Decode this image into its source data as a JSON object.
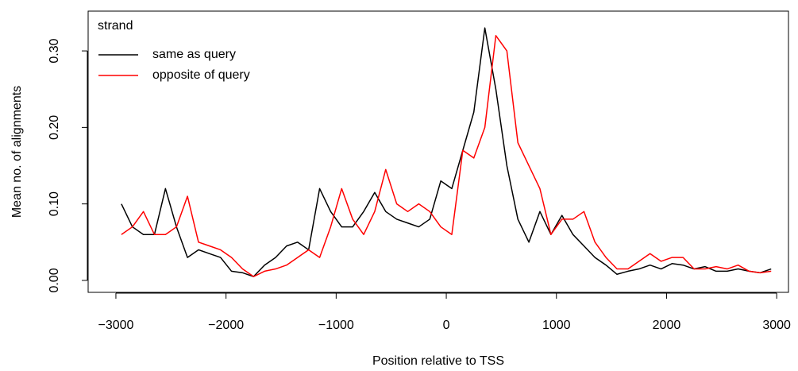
{
  "chart_data": {
    "type": "line",
    "x_label": "Position relative to TSS",
    "y_label": "Mean no. of alignments",
    "legend_title": "strand",
    "legend_position": "top-left",
    "x": [
      -2950,
      -2850,
      -2750,
      -2650,
      -2550,
      -2450,
      -2350,
      -2250,
      -2150,
      -2050,
      -1950,
      -1850,
      -1750,
      -1650,
      -1550,
      -1450,
      -1350,
      -1250,
      -1150,
      -1050,
      -950,
      -850,
      -750,
      -650,
      -550,
      -450,
      -350,
      -250,
      -150,
      -50,
      50,
      150,
      250,
      350,
      450,
      550,
      650,
      750,
      850,
      950,
      1050,
      1150,
      1250,
      1350,
      1450,
      1550,
      1650,
      1750,
      1850,
      1950,
      2050,
      2150,
      2250,
      2350,
      2450,
      2550,
      2650,
      2750,
      2850,
      2950
    ],
    "series": [
      {
        "name": "same as query",
        "color": "#000000",
        "values": [
          0.1,
          0.07,
          0.06,
          0.06,
          0.12,
          0.07,
          0.03,
          0.04,
          0.035,
          0.03,
          0.012,
          0.01,
          0.005,
          0.02,
          0.03,
          0.045,
          0.05,
          0.04,
          0.12,
          0.09,
          0.07,
          0.07,
          0.09,
          0.115,
          0.09,
          0.08,
          0.075,
          0.07,
          0.08,
          0.13,
          0.12,
          0.17,
          0.22,
          0.33,
          0.25,
          0.15,
          0.08,
          0.05,
          0.09,
          0.06,
          0.085,
          0.06,
          0.045,
          0.03,
          0.02,
          0.008,
          0.012,
          0.015,
          0.02,
          0.015,
          0.022,
          0.02,
          0.015,
          0.018,
          0.012,
          0.012,
          0.015,
          0.012,
          0.01,
          0.015
        ]
      },
      {
        "name": "opposite of query",
        "color": "#ff0000",
        "values": [
          0.06,
          0.07,
          0.09,
          0.06,
          0.06,
          0.07,
          0.11,
          0.05,
          0.045,
          0.04,
          0.03,
          0.015,
          0.005,
          0.012,
          0.015,
          0.02,
          0.03,
          0.04,
          0.03,
          0.07,
          0.12,
          0.08,
          0.06,
          0.09,
          0.145,
          0.1,
          0.09,
          0.1,
          0.09,
          0.07,
          0.06,
          0.17,
          0.16,
          0.2,
          0.32,
          0.3,
          0.18,
          0.15,
          0.12,
          0.06,
          0.08,
          0.08,
          0.09,
          0.05,
          0.03,
          0.015,
          0.015,
          0.025,
          0.035,
          0.025,
          0.03,
          0.03,
          0.015,
          0.015,
          0.018,
          0.015,
          0.02,
          0.012,
          0.01,
          0.012
        ]
      }
    ],
    "xlim": [
      -3252,
      3107
    ],
    "ylim": [
      -0.0156,
      0.352
    ],
    "xticks": [
      {
        "value": -3000,
        "label": "−3000"
      },
      {
        "value": -2000,
        "label": "−2000"
      },
      {
        "value": -1000,
        "label": "−1000"
      },
      0,
      1000,
      2000,
      3000
    ],
    "yticks": [
      {
        "value": 0,
        "label": "0.00"
      },
      {
        "value": 0.1,
        "label": "0.10"
      },
      {
        "value": 0.2,
        "label": "0.20"
      },
      {
        "value": 0.3,
        "label": "0.30"
      }
    ]
  }
}
